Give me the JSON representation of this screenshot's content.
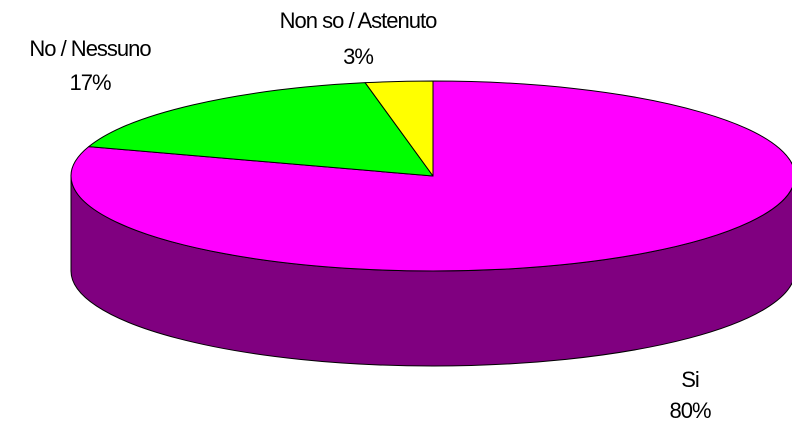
{
  "chart_data": {
    "type": "pie",
    "style": "3d",
    "slices": [
      {
        "label": "Si",
        "percent_label": "80%",
        "value": 80,
        "color": "#ff00ff",
        "side_color": "#800080"
      },
      {
        "label": "No / Nessuno",
        "percent_label": "17%",
        "value": 17,
        "color": "#00ff00",
        "side_color": "#008000"
      },
      {
        "label": "Non so / Astenuto",
        "percent_label": "3%",
        "value": 3,
        "color": "#ffff00",
        "side_color": "#808000"
      }
    ]
  }
}
